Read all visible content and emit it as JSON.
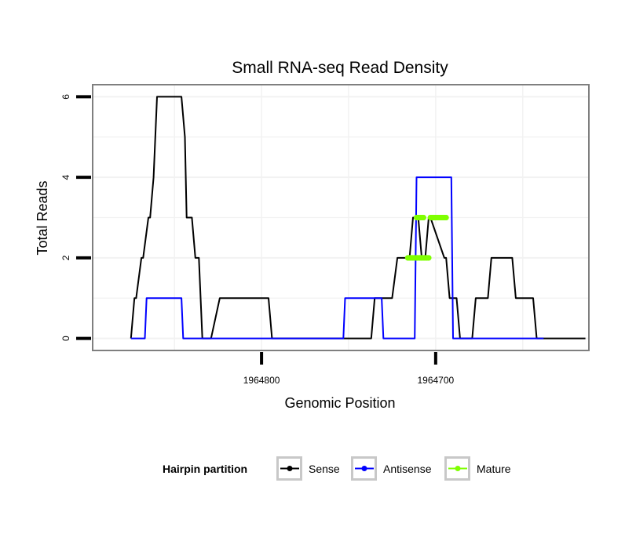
{
  "chart_data": {
    "type": "line",
    "title": "Small RNA-seq Read Density",
    "xlabel": "Genomic Position",
    "ylabel": "Total Reads",
    "x_reversed": true,
    "xlim": [
      1964897,
      1964612
    ],
    "ylim": [
      -0.3,
      6.3
    ],
    "x_ticks": [
      {
        "value": 1964800,
        "label": "1964800"
      },
      {
        "value": 1964700,
        "label": "1964700"
      }
    ],
    "y_ticks": [
      {
        "value": 0,
        "label": "0"
      },
      {
        "value": 2,
        "label": "2"
      },
      {
        "value": 4,
        "label": "4"
      },
      {
        "value": 6,
        "label": "6"
      }
    ],
    "grid": true,
    "legend": {
      "title": "Hairpin partition",
      "position": "bottom",
      "entries": [
        "Sense",
        "Antisense",
        "Mature"
      ]
    },
    "series": [
      {
        "name": "Sense",
        "color": "#000000",
        "x": [
          1964875,
          1964873,
          1964872,
          1964869,
          1964868,
          1964865,
          1964864,
          1964862,
          1964860,
          1964846,
          1964844,
          1964843,
          1964840,
          1964838,
          1964836,
          1964834,
          1964832,
          1964829,
          1964824,
          1964822,
          1964796,
          1964794,
          1964778,
          1964764,
          1964737,
          1964735,
          1964725,
          1964722,
          1964715,
          1964713,
          1964710,
          1964708,
          1964706,
          1964704,
          1964703,
          1964695,
          1964694,
          1964692,
          1964688,
          1964686,
          1964684,
          1964679,
          1964677,
          1964670,
          1964668,
          1964656,
          1964654,
          1964644,
          1964642,
          1964639,
          1964637,
          1964614
        ],
        "y": [
          0,
          1,
          1,
          2,
          2,
          3,
          3,
          4,
          6,
          6,
          5,
          3,
          3,
          2,
          2,
          0,
          0,
          0,
          1,
          1,
          1,
          0,
          0,
          0,
          0,
          1,
          1,
          2,
          2,
          3,
          3,
          2,
          2,
          3,
          3,
          2,
          2,
          1,
          1,
          0,
          0,
          0,
          1,
          1,
          2,
          2,
          1,
          1,
          0,
          0,
          0,
          0
        ]
      },
      {
        "name": "Antisense",
        "color": "#0000ff",
        "x": [
          1964875,
          1964867,
          1964866,
          1964846,
          1964845,
          1964821,
          1964819,
          1964753,
          1964752,
          1964731,
          1964730,
          1964712,
          1964711,
          1964691,
          1964690,
          1964677,
          1964638
        ],
        "y": [
          0,
          0,
          1,
          1,
          0,
          0,
          0,
          0,
          1,
          1,
          0,
          0,
          4,
          4,
          0,
          0,
          0
        ]
      },
      {
        "name": "Mature",
        "color": "#7fff00",
        "segments": [
          {
            "x": [
              1964716,
              1964704
            ],
            "y": [
              2,
              2
            ]
          },
          {
            "x": [
              1964711,
              1964707
            ],
            "y": [
              3,
              3
            ]
          },
          {
            "x": [
              1964703,
              1964694
            ],
            "y": [
              3,
              3
            ]
          }
        ]
      }
    ]
  }
}
